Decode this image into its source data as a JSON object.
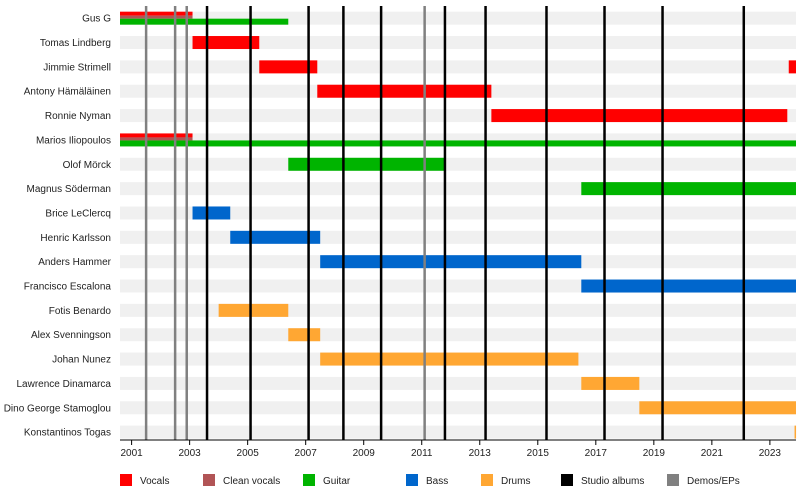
{
  "chart_data": {
    "type": "timeline",
    "title": "",
    "xlabel": "",
    "ylabel": "",
    "xlim": [
      2000.6,
      2023.9
    ],
    "x_ticks": [
      2001,
      2003,
      2005,
      2007,
      2009,
      2011,
      2013,
      2015,
      2017,
      2019,
      2021,
      2023
    ],
    "grid": "alternating horizontal row bands",
    "legend_position": "bottom",
    "members": [
      "Gus G",
      "Tomas Lindberg",
      "Jimmie Strimell",
      "Antony Hämäläinen",
      "Ronnie Nyman",
      "Marios Iliopoulos",
      "Olof Mörck",
      "Magnus Söderman",
      "Brice LeClercq",
      "Henric Karlsson",
      "Anders Hammer",
      "Francisco Escalona",
      "Fotis Benardo",
      "Alex Svenningson",
      "Johan Nunez",
      "Lawrence Dinamarca",
      "Dino George Stamoglou",
      "Konstantinos Togas"
    ],
    "roles": [
      {
        "key": "vocals",
        "name": "Vocals",
        "color": "#ff0000"
      },
      {
        "key": "clean",
        "name": "Clean vocals",
        "color": "#b15456"
      },
      {
        "key": "guitar",
        "name": "Guitar",
        "color": "#00b400"
      },
      {
        "key": "bass",
        "name": "Bass",
        "color": "#0066cc"
      },
      {
        "key": "drums",
        "name": "Drums",
        "color": "#ffa733"
      },
      {
        "key": "studio",
        "name": "Studio albums",
        "color": "#000000"
      },
      {
        "key": "demo",
        "name": "Demos/EPs",
        "color": "#808080"
      }
    ],
    "bars": [
      {
        "member": 0,
        "role": "vocals",
        "start": 2000.6,
        "end": 2003.1,
        "part": "top"
      },
      {
        "member": 0,
        "role": "clean",
        "start": 2000.6,
        "end": 2003.1,
        "part": "middle"
      },
      {
        "member": 0,
        "role": "guitar",
        "start": 2000.6,
        "end": 2006.4,
        "part": "bottom"
      },
      {
        "member": 1,
        "role": "vocals",
        "start": 2003.1,
        "end": 2005.4,
        "part": "full"
      },
      {
        "member": 2,
        "role": "vocals",
        "start": 2005.4,
        "end": 2007.4,
        "part": "full"
      },
      {
        "member": 2,
        "role": "vocals",
        "start": 2023.65,
        "end": 2023.9,
        "part": "full"
      },
      {
        "member": 3,
        "role": "vocals",
        "start": 2007.4,
        "end": 2013.4,
        "part": "full"
      },
      {
        "member": 4,
        "role": "vocals",
        "start": 2013.4,
        "end": 2023.6,
        "part": "full"
      },
      {
        "member": 5,
        "role": "vocals",
        "start": 2000.6,
        "end": 2003.1,
        "part": "top"
      },
      {
        "member": 5,
        "role": "clean",
        "start": 2000.6,
        "end": 2003.1,
        "part": "middle"
      },
      {
        "member": 5,
        "role": "guitar",
        "start": 2000.6,
        "end": 2023.9,
        "part": "bottom"
      },
      {
        "member": 6,
        "role": "guitar",
        "start": 2006.4,
        "end": 2011.8,
        "part": "full"
      },
      {
        "member": 7,
        "role": "guitar",
        "start": 2016.5,
        "end": 2023.9,
        "part": "full"
      },
      {
        "member": 8,
        "role": "bass",
        "start": 2003.1,
        "end": 2004.4,
        "part": "full"
      },
      {
        "member": 9,
        "role": "bass",
        "start": 2004.4,
        "end": 2007.5,
        "part": "full"
      },
      {
        "member": 10,
        "role": "bass",
        "start": 2007.5,
        "end": 2016.5,
        "part": "full"
      },
      {
        "member": 11,
        "role": "bass",
        "start": 2016.5,
        "end": 2023.9,
        "part": "full"
      },
      {
        "member": 12,
        "role": "drums",
        "start": 2004.0,
        "end": 2006.4,
        "part": "full"
      },
      {
        "member": 13,
        "role": "drums",
        "start": 2006.4,
        "end": 2007.5,
        "part": "full"
      },
      {
        "member": 14,
        "role": "drums",
        "start": 2007.5,
        "end": 2016.4,
        "part": "full"
      },
      {
        "member": 15,
        "role": "drums",
        "start": 2016.5,
        "end": 2018.5,
        "part": "full"
      },
      {
        "member": 16,
        "role": "drums",
        "start": 2018.5,
        "end": 2023.9,
        "part": "full"
      },
      {
        "member": 17,
        "role": "drums",
        "start": 2023.85,
        "end": 2023.9,
        "part": "full"
      }
    ],
    "studio_albums": [
      2003.6,
      2005.1,
      2007.1,
      2008.3,
      2009.6,
      2011.8,
      2013.2,
      2015.3,
      2017.3,
      2019.3,
      2022.1
    ],
    "demos_eps": [
      2001.5,
      2002.5,
      2002.9,
      2011.1
    ]
  }
}
